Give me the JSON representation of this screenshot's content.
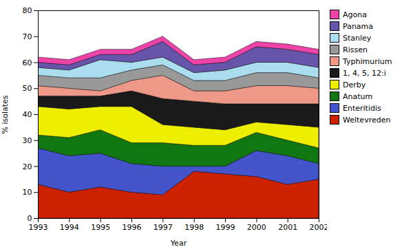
{
  "chart_data": {
    "type": "area",
    "stacked": true,
    "x": [
      1993,
      1994,
      1995,
      1996,
      1997,
      1998,
      1999,
      2000,
      2001,
      2002
    ],
    "xlabel": "Year",
    "ylabel": "% isolates",
    "xlim": [
      1993,
      2002
    ],
    "xticks": [
      1993,
      1994,
      1995,
      1996,
      1997,
      1998,
      1999,
      2000,
      2001,
      2002
    ],
    "ylim": [
      0,
      80
    ],
    "yticks": [
      0,
      10,
      20,
      30,
      40,
      50,
      60,
      70,
      80
    ],
    "legend": "right",
    "series": [
      {
        "name": "Weltevreden",
        "color": "#cc2200",
        "values": [
          13,
          10,
          12,
          10,
          9,
          18,
          17,
          16,
          13,
          15
        ]
      },
      {
        "name": "Enteritidis",
        "color": "#4455cc",
        "values": [
          14,
          14,
          13,
          11,
          11,
          2,
          3,
          10,
          11,
          6
        ]
      },
      {
        "name": "Anatum",
        "color": "#117711",
        "values": [
          5,
          7,
          9,
          8,
          9,
          8,
          8,
          7,
          6,
          6
        ]
      },
      {
        "name": "Derby",
        "color": "#eeee00",
        "values": [
          11,
          11,
          9,
          14,
          7,
          7,
          6,
          4,
          6,
          8
        ]
      },
      {
        "name": "1, 4, 5, 12:i",
        "color": "#1a1a1a",
        "values": [
          4,
          5,
          4,
          6,
          10,
          10,
          10,
          7,
          8,
          9
        ]
      },
      {
        "name": "Typhimurium",
        "color": "#ee9988",
        "values": [
          4,
          3,
          2,
          4,
          9,
          4,
          5,
          7,
          7,
          6
        ]
      },
      {
        "name": "Rissen",
        "color": "#999999",
        "values": [
          4,
          4,
          5,
          4,
          4,
          4,
          4,
          5,
          5,
          4
        ]
      },
      {
        "name": "Stanley",
        "color": "#aadded",
        "values": [
          3,
          3,
          7,
          3,
          3,
          3,
          4,
          4,
          4,
          4
        ]
      },
      {
        "name": "Panama",
        "color": "#6655aa",
        "values": [
          2,
          2,
          2,
          3,
          6,
          3,
          3,
          6,
          5,
          5
        ]
      },
      {
        "name": "Agona",
        "color": "#ee44aa",
        "values": [
          2,
          2,
          2,
          2,
          2,
          2,
          2,
          2,
          2,
          2
        ]
      }
    ]
  }
}
